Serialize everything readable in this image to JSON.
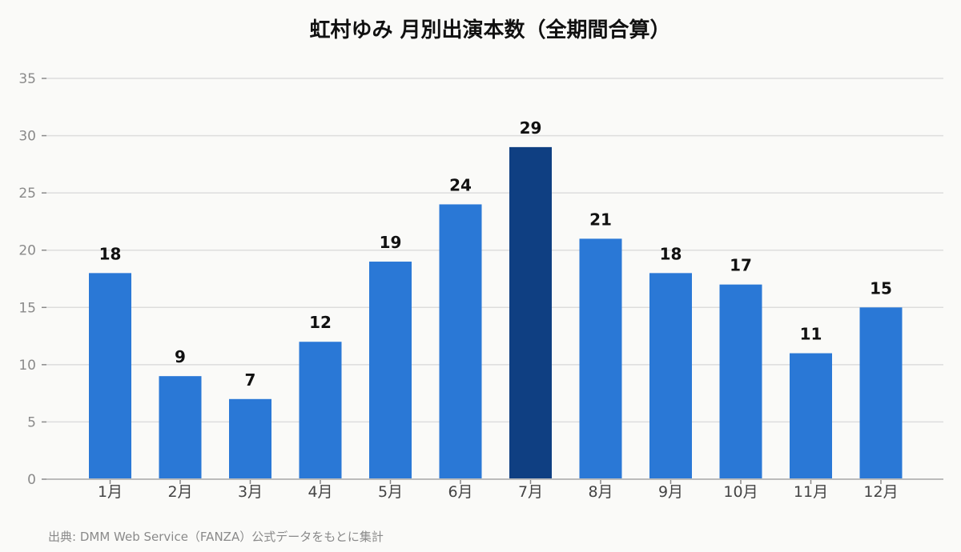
{
  "chart_data": {
    "type": "bar",
    "title": "虹村ゆみ 月別出演本数（全期間合算）",
    "categories": [
      "1月",
      "2月",
      "3月",
      "4月",
      "5月",
      "6月",
      "7月",
      "8月",
      "9月",
      "10月",
      "11月",
      "12月"
    ],
    "values": [
      18,
      9,
      7,
      12,
      19,
      24,
      29,
      21,
      18,
      17,
      11,
      15
    ],
    "xlabel": "",
    "ylabel": "",
    "ylim": [
      0,
      35
    ],
    "yticks": [
      0,
      5,
      10,
      15,
      20,
      25,
      30,
      35
    ],
    "grid": true,
    "data_labels": true,
    "highlight_category": "7月",
    "colors": {
      "bar": "#2a78d6",
      "highlight_bar": "#0f3f82",
      "grid": "#dddddd",
      "axis": "#bbbbbb",
      "background": "#fafaf8"
    }
  },
  "footer": {
    "source_note": "出典: DMM Web Service（FANZA）公式データをもとに集計"
  }
}
